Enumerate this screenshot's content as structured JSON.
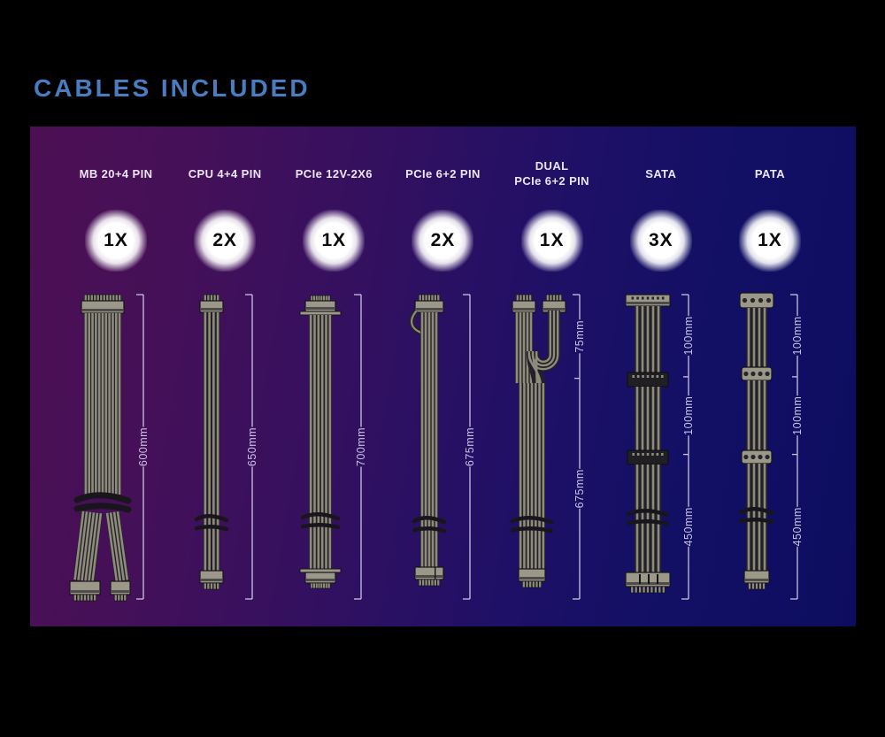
{
  "title": "CABLES INCLUDED",
  "colors": {
    "title": "#4a7dc0",
    "background": "#000000",
    "panel_left": "#4c0f53",
    "panel_right": "#0d0d60",
    "header_text": "#eae6f4",
    "badge_glow": "#ffffff",
    "badge_text": "#0b0b0b",
    "wire": "#8e8b7b",
    "wire_gap": "#232128",
    "connector": "#9b9889",
    "connector_dark": "#141417",
    "strap": "#18161c",
    "bracket": "#c9c2e2"
  },
  "columns": [
    {
      "id": "mb-20-4-pin",
      "header": [
        "MB 20+4 PIN"
      ],
      "qty": "1X",
      "type": "atx24",
      "segments": [
        {
          "label": "600mm",
          "frac": 1
        }
      ]
    },
    {
      "id": "cpu-4-4-pin",
      "header": [
        "CPU 4+4 PIN"
      ],
      "qty": "2X",
      "type": "eps44",
      "segments": [
        {
          "label": "650mm",
          "frac": 1
        }
      ]
    },
    {
      "id": "pcie-12v-2x6",
      "header": [
        "PCIe 12V-2X6"
      ],
      "qty": "1X",
      "type": "hpwr",
      "segments": [
        {
          "label": "700mm",
          "frac": 1
        }
      ]
    },
    {
      "id": "pcie-6-2-pin",
      "header": [
        "PCIe 6+2 PIN"
      ],
      "qty": "2X",
      "type": "pcie62",
      "segments": [
        {
          "label": "675mm",
          "frac": 1
        }
      ]
    },
    {
      "id": "dual-pcie-6-2",
      "header": [
        "DUAL",
        "PCIe 6+2 PIN"
      ],
      "qty": "1X",
      "type": "dual62",
      "segments": [
        {
          "label": "75mm",
          "frac": 0.275
        },
        {
          "label": "675mm",
          "frac": 0.725
        }
      ]
    },
    {
      "id": "sata",
      "header": [
        "SATA"
      ],
      "qty": "3X",
      "type": "sata",
      "segments": [
        {
          "label": "100mm",
          "frac": 0.27
        },
        {
          "label": "100mm",
          "frac": 0.255
        },
        {
          "label": "450mm",
          "frac": 0.475
        }
      ]
    },
    {
      "id": "pata",
      "header": [
        "PATA"
      ],
      "qty": "1X",
      "type": "pata",
      "segments": [
        {
          "label": "100mm",
          "frac": 0.27
        },
        {
          "label": "100mm",
          "frac": 0.255
        },
        {
          "label": "450mm",
          "frac": 0.475
        }
      ]
    }
  ]
}
